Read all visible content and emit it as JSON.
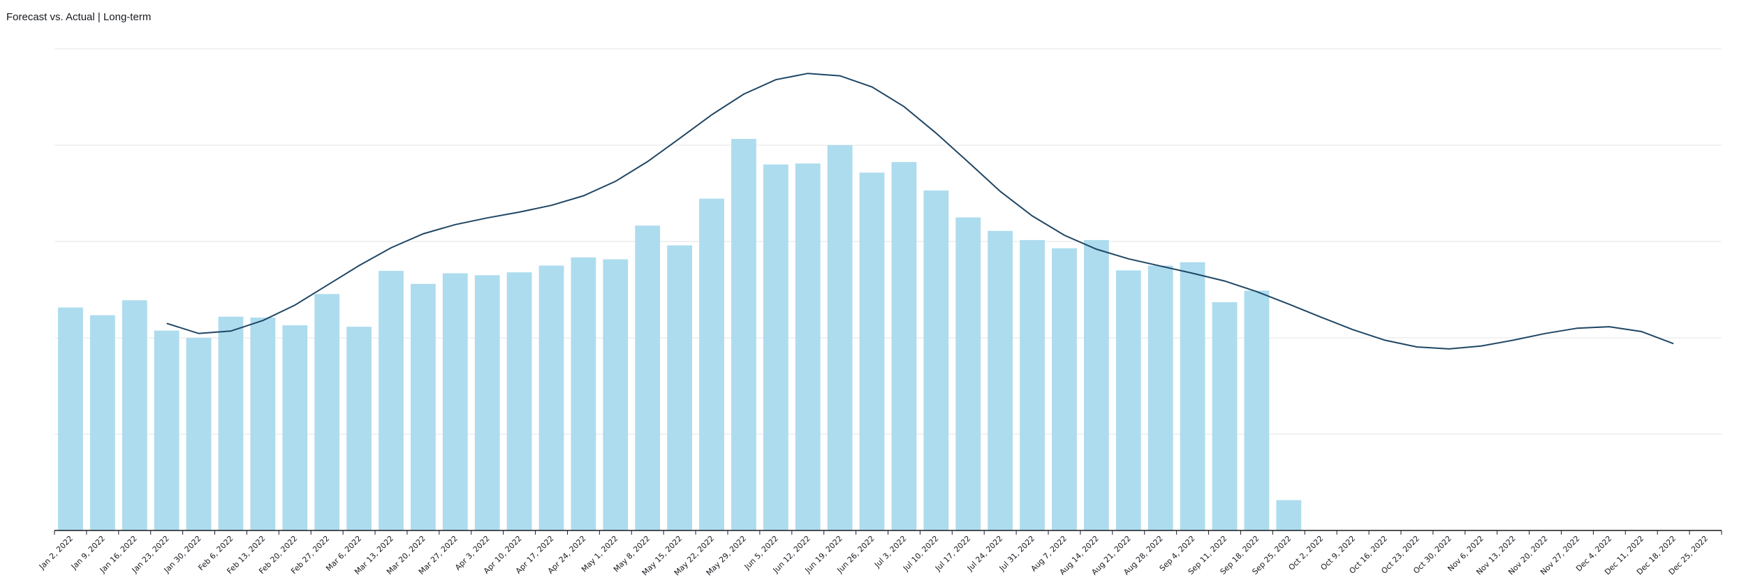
{
  "chart_data": {
    "type": "bar",
    "title": "Forecast vs. Actual | Long-term",
    "xlabel": "",
    "ylabel": "",
    "ylim": [
      0,
      100
    ],
    "grid": true,
    "categories": [
      "Jan 2, 2022",
      "Jan 9, 2022",
      "Jan 16, 2022",
      "Jan 23, 2022",
      "Jan 30, 2022",
      "Feb 6, 2022",
      "Feb 13, 2022",
      "Feb 20, 2022",
      "Feb 27, 2022",
      "Mar 6, 2022",
      "Mar 13, 2022",
      "Mar 20, 2022",
      "Mar 27, 2022",
      "Apr 3, 2022",
      "Apr 10, 2022",
      "Apr 17, 2022",
      "Apr 24, 2022",
      "May 1, 2022",
      "May 8, 2022",
      "May 15, 2022",
      "May 22, 2022",
      "May 29, 2022",
      "Jun 5, 2022",
      "Jun 12, 2022",
      "Jun 19, 2022",
      "Jun 26, 2022",
      "Jul 3, 2022",
      "Jul 10, 2022",
      "Jul 17, 2022",
      "Jul 24, 2022",
      "Jul 31, 2022",
      "Aug 7, 2022",
      "Aug 14, 2022",
      "Aug 21, 2022",
      "Aug 28, 2022",
      "Sep 4, 2022",
      "Sep 11, 2022",
      "Sep 18, 2022",
      "Sep 25, 2022",
      "Oct 2, 2022",
      "Oct 9, 2022",
      "Oct 16, 2022",
      "Oct 23, 2022",
      "Oct 30, 2022",
      "Nov 6, 2022",
      "Nov 13, 2022",
      "Nov 20, 2022",
      "Nov 27, 2022",
      "Dec 4, 2022",
      "Dec 11, 2022",
      "Dec 18, 2022",
      "Dec 25, 2022"
    ],
    "series": [
      {
        "kind": "bar",
        "color": "#addcee",
        "values": [
          46.3,
          44.7,
          47.8,
          41.5,
          40.0,
          44.4,
          44.2,
          42.6,
          49.1,
          42.3,
          53.9,
          51.2,
          53.4,
          53.0,
          53.6,
          55.0,
          56.7,
          56.3,
          63.3,
          59.2,
          68.9,
          81.3,
          76.0,
          76.2,
          80.0,
          74.3,
          76.5,
          70.6,
          65.0,
          62.2,
          60.3,
          58.6,
          60.3,
          54.0,
          55.0,
          55.7,
          47.4,
          49.8,
          6.3,
          null,
          null,
          null,
          null,
          null,
          null,
          null,
          null,
          null,
          null,
          null,
          null,
          null
        ]
      },
      {
        "kind": "line",
        "color": "#1f4664",
        "values": [
          null,
          null,
          null,
          43.0,
          40.9,
          41.4,
          43.6,
          46.8,
          50.9,
          55.0,
          58.7,
          61.6,
          63.5,
          64.9,
          66.1,
          67.5,
          69.5,
          72.5,
          76.6,
          81.4,
          86.3,
          90.6,
          93.6,
          94.9,
          94.4,
          92.1,
          88.0,
          82.5,
          76.5,
          70.4,
          65.3,
          61.3,
          58.4,
          56.4,
          54.9,
          53.4,
          51.8,
          49.6,
          47.0,
          44.3,
          41.7,
          39.5,
          38.1,
          37.7,
          38.3,
          39.5,
          40.9,
          42.0,
          42.3,
          41.3,
          38.8,
          null
        ]
      }
    ]
  }
}
